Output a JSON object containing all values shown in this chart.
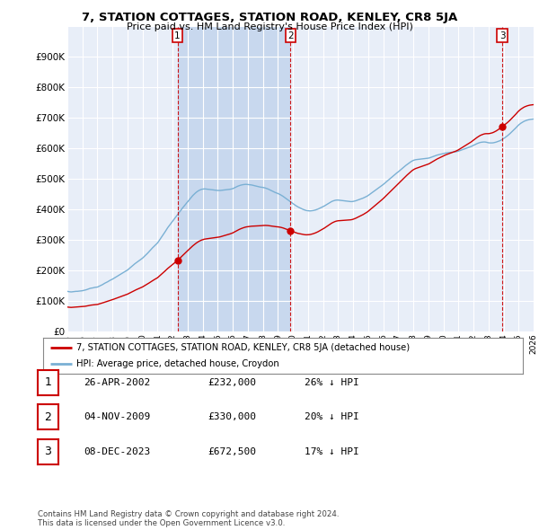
{
  "title": "7, STATION COTTAGES, STATION ROAD, KENLEY, CR8 5JA",
  "subtitle": "Price paid vs. HM Land Registry's House Price Index (HPI)",
  "xlim": [
    1995.0,
    2026.0
  ],
  "ylim": [
    0,
    1000000
  ],
  "yticks": [
    0,
    100000,
    200000,
    300000,
    400000,
    500000,
    600000,
    700000,
    800000,
    900000
  ],
  "ytick_labels": [
    "£0",
    "£100K",
    "£200K",
    "£300K",
    "£400K",
    "£500K",
    "£600K",
    "£700K",
    "£800K",
    "£900K"
  ],
  "property_line_color": "#cc0000",
  "hpi_line_color": "#7ab0d4",
  "vline_color": "#cc0000",
  "label_box_color": "#cc0000",
  "bg_color": "#ffffff",
  "plot_bg_color": "#e8eef8",
  "grid_color": "#ffffff",
  "shade_color": "#c8d8ee",
  "transactions": [
    {
      "date": 2002.32,
      "price": 232000,
      "label": "1"
    },
    {
      "date": 2009.84,
      "price": 330000,
      "label": "2"
    },
    {
      "date": 2023.93,
      "price": 672500,
      "label": "3"
    }
  ],
  "legend_property": "7, STATION COTTAGES, STATION ROAD, KENLEY, CR8 5JA (detached house)",
  "legend_hpi": "HPI: Average price, detached house, Croydon",
  "table_rows": [
    {
      "num": "1",
      "date": "26-APR-2002",
      "price": "£232,000",
      "hpi": "26% ↓ HPI"
    },
    {
      "num": "2",
      "date": "04-NOV-2009",
      "price": "£330,000",
      "hpi": "20% ↓ HPI"
    },
    {
      "num": "3",
      "date": "08-DEC-2023",
      "price": "£672,500",
      "hpi": "17% ↓ HPI"
    }
  ],
  "footnote": "Contains HM Land Registry data © Crown copyright and database right 2024.\nThis data is licensed under the Open Government Licence v3.0.",
  "hpi_monthly": {
    "start_year": 1995.0,
    "step": 0.08333,
    "values": [
      131000,
      130000,
      129500,
      129000,
      129500,
      130000,
      130500,
      131000,
      131000,
      131500,
      132000,
      132500,
      133000,
      134000,
      135000,
      136000,
      137500,
      139000,
      140500,
      141500,
      142000,
      143000,
      144000,
      144500,
      145000,
      147000,
      149000,
      151000,
      153000,
      155500,
      158000,
      160000,
      162000,
      164500,
      167000,
      169000,
      171000,
      173500,
      176000,
      178500,
      181000,
      183500,
      186000,
      188500,
      191000,
      193500,
      196000,
      198500,
      201000,
      204500,
      208000,
      211500,
      215000,
      218500,
      222000,
      225000,
      228000,
      231000,
      234000,
      237000,
      240000,
      244000,
      248000,
      252000,
      256000,
      260500,
      265000,
      269500,
      274000,
      278000,
      282000,
      286000,
      290000,
      296000,
      302000,
      308000,
      314000,
      320000,
      326500,
      333000,
      339500,
      345000,
      350500,
      356000,
      361500,
      367000,
      372500,
      378000,
      383500,
      389000,
      394500,
      400000,
      405000,
      410000,
      415000,
      420000,
      425500,
      430500,
      435500,
      440500,
      445000,
      449000,
      453000,
      456500,
      459500,
      462000,
      464000,
      465500,
      466500,
      467000,
      467000,
      466500,
      466000,
      465500,
      465000,
      464500,
      464000,
      463500,
      463000,
      462500,
      462000,
      462000,
      462000,
      462500,
      463000,
      463500,
      464000,
      464500,
      465000,
      465500,
      466000,
      467000,
      468000,
      470000,
      472000,
      474000,
      476000,
      477500,
      479000,
      480000,
      481000,
      481500,
      482000,
      482000,
      481500,
      481000,
      480500,
      480000,
      479000,
      478000,
      477000,
      476000,
      475000,
      474000,
      473000,
      472500,
      472000,
      471000,
      470000,
      468500,
      467000,
      465000,
      463000,
      461000,
      459000,
      457000,
      455000,
      453500,
      452000,
      450000,
      448000,
      445500,
      443000,
      440000,
      437000,
      434000,
      431000,
      428000,
      425000,
      422000,
      419000,
      416000,
      413000,
      410500,
      408000,
      406000,
      404000,
      402000,
      400000,
      398500,
      397000,
      396000,
      395500,
      395000,
      395000,
      395500,
      396000,
      397000,
      398000,
      399500,
      401000,
      403000,
      405000,
      407000,
      409000,
      411000,
      413500,
      416000,
      418500,
      421000,
      423500,
      426000,
      427500,
      429000,
      430000,
      430500,
      430500,
      430000,
      429500,
      429000,
      428500,
      428000,
      427500,
      427000,
      426500,
      426000,
      425500,
      425500,
      426000,
      427000,
      428000,
      429500,
      431000,
      432500,
      434000,
      435500,
      437000,
      439000,
      441000,
      443000,
      445500,
      448500,
      451500,
      454500,
      457500,
      460500,
      463500,
      466500,
      469500,
      472500,
      475500,
      478500,
      481500,
      485000,
      488500,
      492000,
      495500,
      499000,
      502500,
      506000,
      509500,
      513000,
      516500,
      520000,
      523000,
      526500,
      530000,
      533500,
      537000,
      540500,
      544000,
      547000,
      550000,
      553000,
      556000,
      558500,
      560500,
      562000,
      563000,
      563500,
      564000,
      564500,
      565000,
      565500,
      566000,
      566500,
      567000,
      567500,
      568000,
      569000,
      570500,
      572000,
      573500,
      575000,
      576500,
      578000,
      579000,
      580000,
      581000,
      582000,
      583000,
      584000,
      585000,
      585500,
      586000,
      586500,
      587000,
      587500,
      588000,
      588500,
      589000,
      590000,
      591000,
      592500,
      594000,
      595500,
      597000,
      598500,
      600000,
      601500,
      603000,
      604500,
      606000,
      608000,
      610000,
      612000,
      614000,
      616000,
      617500,
      619000,
      620000,
      620500,
      621000,
      621000,
      620500,
      619500,
      618500,
      618000,
      618000,
      618000,
      618500,
      619500,
      620500,
      622000,
      623500,
      625000,
      627000,
      629500,
      632000,
      635000,
      638000,
      641000,
      644500,
      648000,
      652000,
      656000,
      660000,
      664000,
      668000,
      672500,
      676500,
      680000,
      683000,
      685500,
      688000,
      690000,
      691500,
      693000,
      694000,
      695000,
      695500,
      696000,
      696500,
      697000,
      697500,
      698000,
      698500,
      699000,
      700000,
      701000,
      702500,
      704000,
      706000,
      708000,
      710000,
      713000,
      716500,
      720000,
      724000,
      728000,
      733000,
      738000,
      743000,
      748000,
      754000,
      760000,
      766000,
      773000,
      780000,
      787000,
      794500,
      801500,
      808500,
      815000,
      821500,
      827000,
      832000,
      836500,
      840500,
      844000,
      847000,
      849500,
      851500,
      853000,
      854000,
      854500,
      854500,
      854500,
      854000,
      853000,
      851000,
      849000,
      847000,
      845000,
      843000,
      841000,
      839000,
      837000,
      835000,
      833500,
      832000,
      831000,
      830000,
      829000,
      828000,
      827000,
      826000,
      825000,
      824000,
      823000,
      822000,
      821500,
      821000,
      820500,
      820000,
      820000,
      820500,
      821000,
      822000,
      823000,
      824000,
      825000,
      826500,
      828000
    ]
  }
}
